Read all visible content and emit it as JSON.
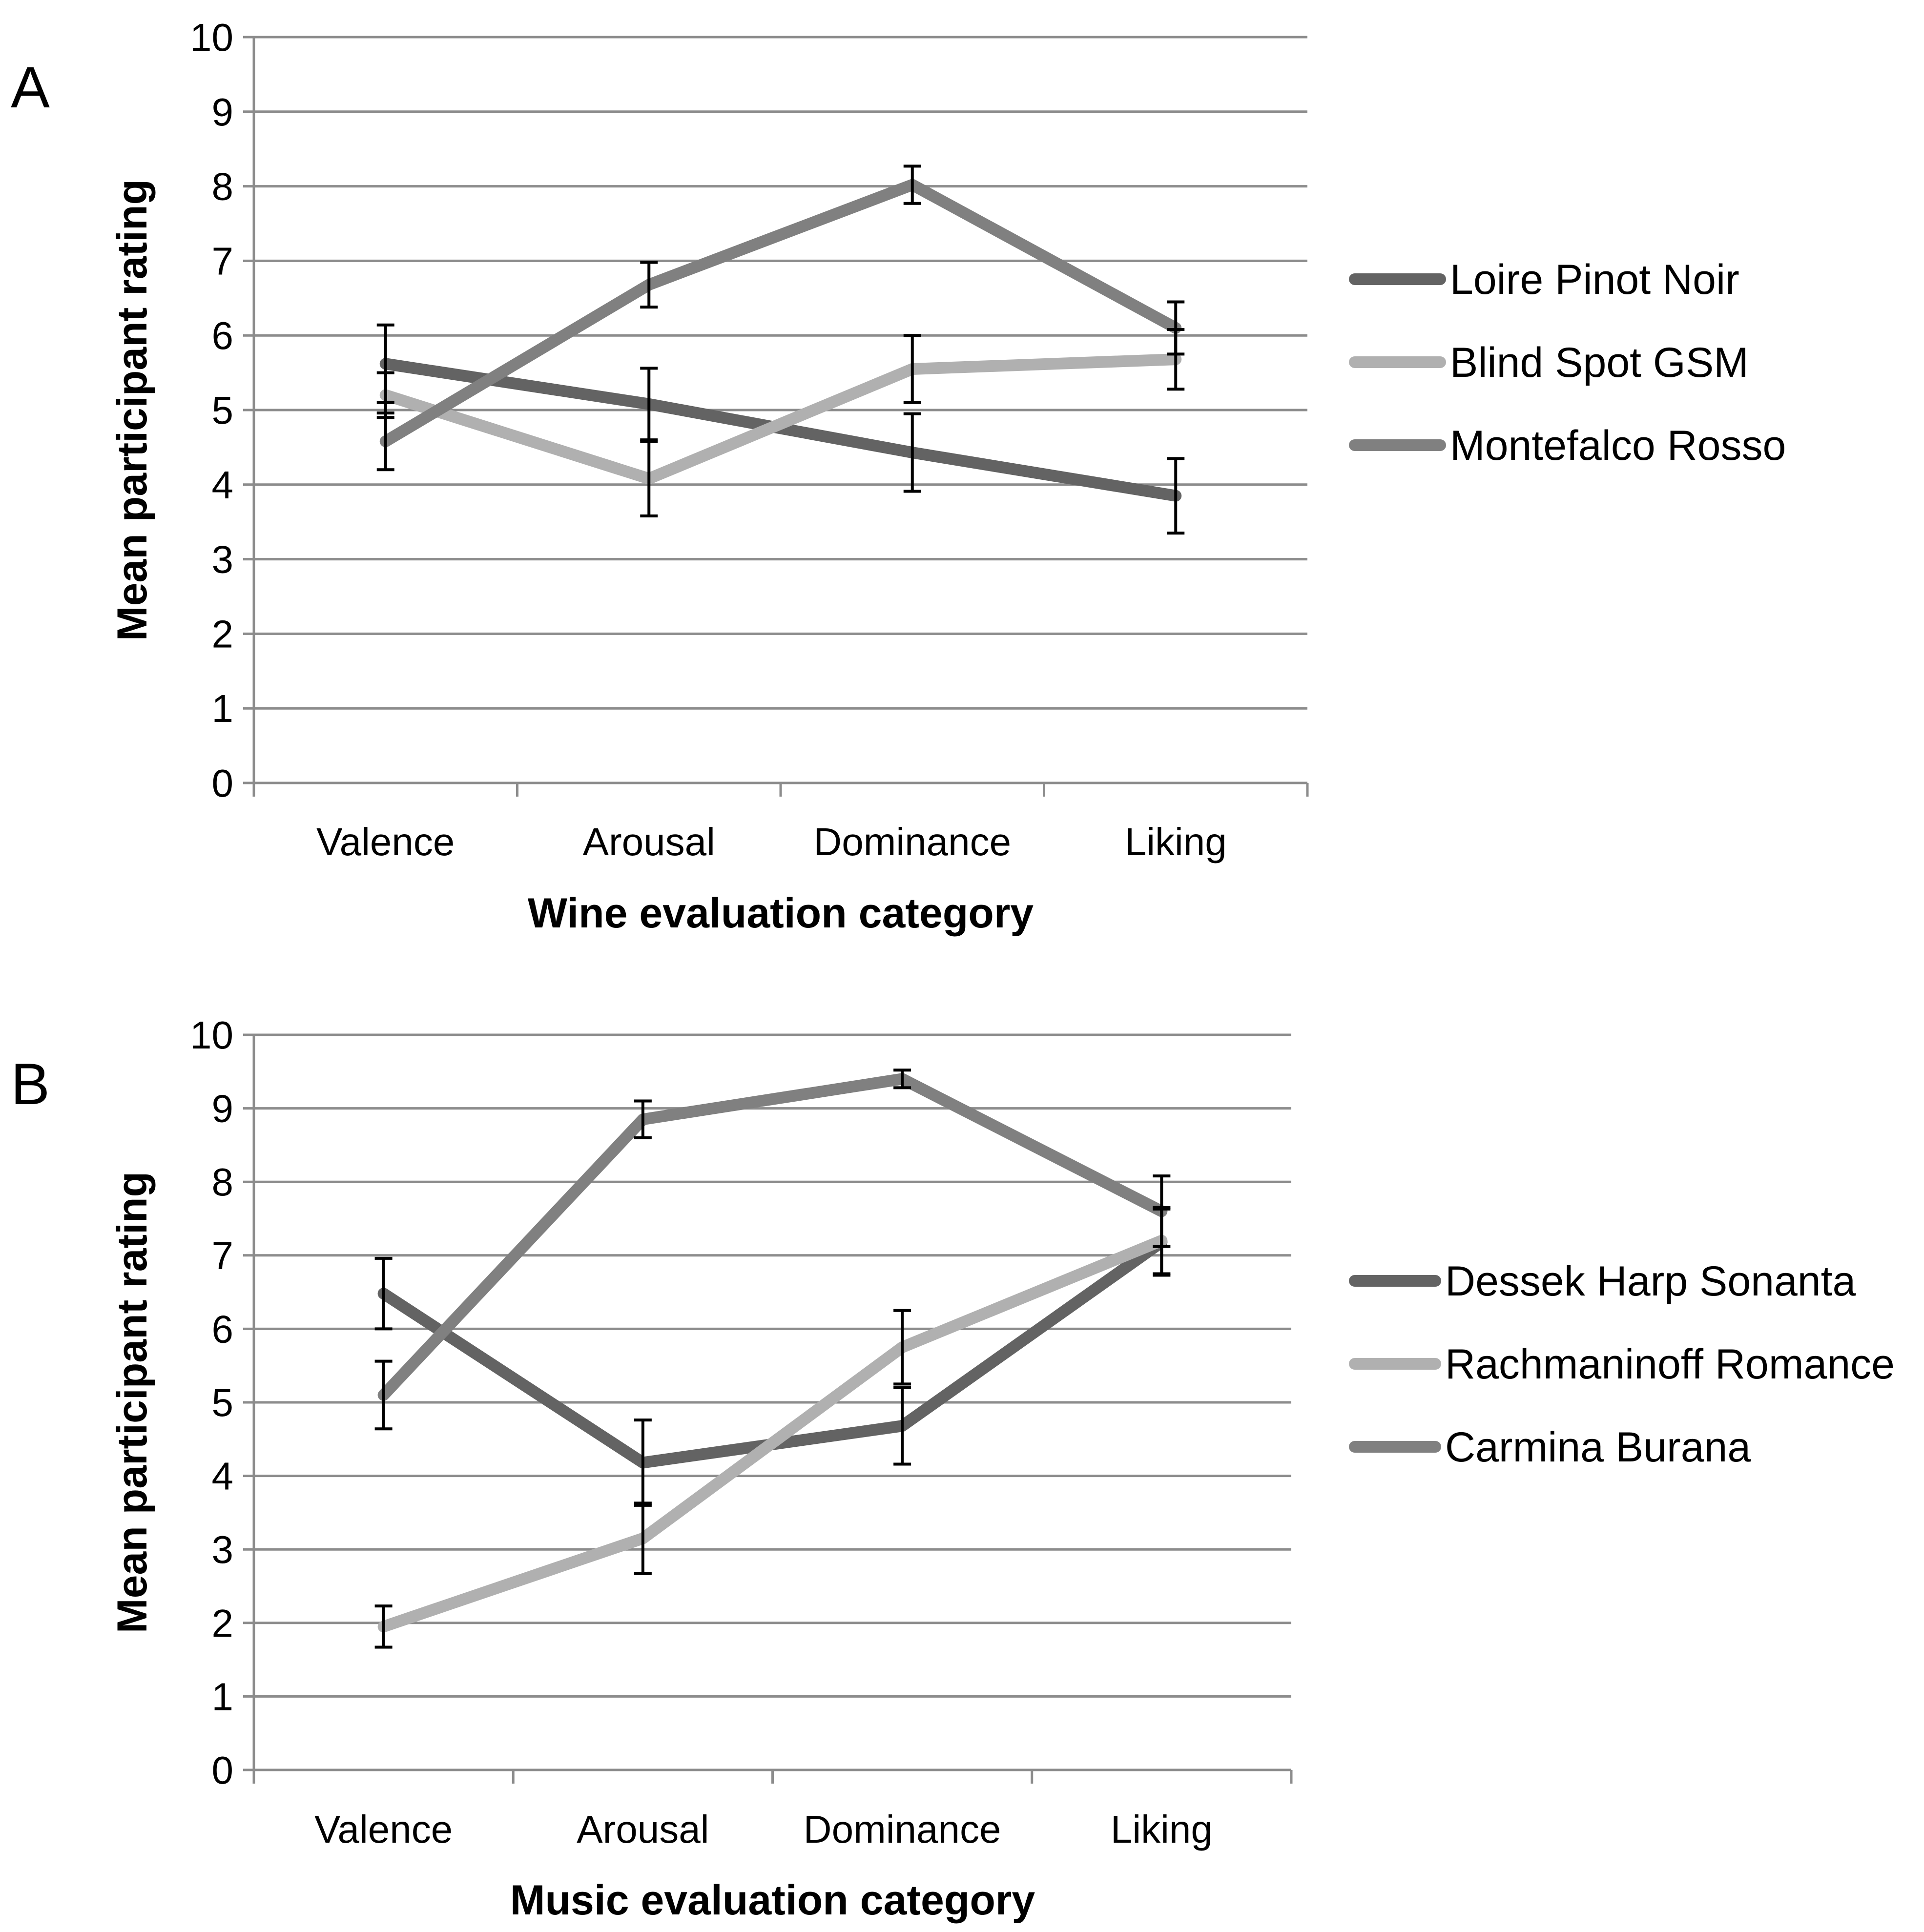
{
  "colors": {
    "dark": "#636363",
    "light": "#b0b0b0",
    "mid": "#808080",
    "grid": "#8c8c8c",
    "axis": "#8c8c8c",
    "error_bar": "#000000"
  },
  "chart_data": [
    {
      "type": "line",
      "panel": "A",
      "title": "",
      "xlabel": "Wine evaluation category",
      "ylabel": "Mean participant rating",
      "categories": [
        "Valence",
        "Arousal",
        "Dominance",
        "Liking"
      ],
      "ylim": [
        0,
        10
      ],
      "yticks": [
        "0",
        "1",
        "2",
        "3",
        "4",
        "5",
        "6",
        "7",
        "8",
        "9",
        "10"
      ],
      "grid": true,
      "legend_position": "right",
      "series": [
        {
          "name": "Loire Pinot Noir",
          "color": "#636363",
          "values": [
            5.62,
            5.08,
            4.43,
            3.85
          ],
          "errors": [
            0.52,
            0.48,
            0.52,
            0.5
          ]
        },
        {
          "name": "Blind Spot GSM",
          "color": "#b0b0b0",
          "values": [
            5.2,
            4.08,
            5.55,
            5.68
          ],
          "errors": [
            0.3,
            0.5,
            0.45,
            0.4
          ]
        },
        {
          "name": "Montefalco Rosso",
          "color": "#808080",
          "values": [
            4.58,
            6.68,
            8.02,
            6.1
          ],
          "errors": [
            0.38,
            0.3,
            0.25,
            0.35
          ]
        }
      ]
    },
    {
      "type": "line",
      "panel": "B",
      "title": "",
      "xlabel": "Music evaluation category",
      "ylabel": "Mean participant rating",
      "categories": [
        "Valence",
        "Arousal",
        "Dominance",
        "Liking"
      ],
      "ylim": [
        0,
        10
      ],
      "yticks": [
        "0",
        "1",
        "2",
        "3",
        "4",
        "5",
        "6",
        "7",
        "8",
        "9",
        "10"
      ],
      "grid": true,
      "legend_position": "right",
      "series": [
        {
          "name": "Dessek Harp Sonanta",
          "color": "#636363",
          "values": [
            6.48,
            4.18,
            4.68,
            7.18
          ],
          "errors": [
            0.48,
            0.58,
            0.52,
            0.45
          ]
        },
        {
          "name": "Rachmaninoff Romance",
          "color": "#b0b0b0",
          "values": [
            1.95,
            3.15,
            5.75,
            7.2
          ],
          "errors": [
            0.28,
            0.48,
            0.5,
            0.45
          ]
        },
        {
          "name": "Carmina Burana",
          "color": "#808080",
          "values": [
            5.1,
            8.85,
            9.4,
            7.6
          ],
          "errors": [
            0.46,
            0.25,
            0.12,
            0.48
          ]
        }
      ]
    }
  ]
}
